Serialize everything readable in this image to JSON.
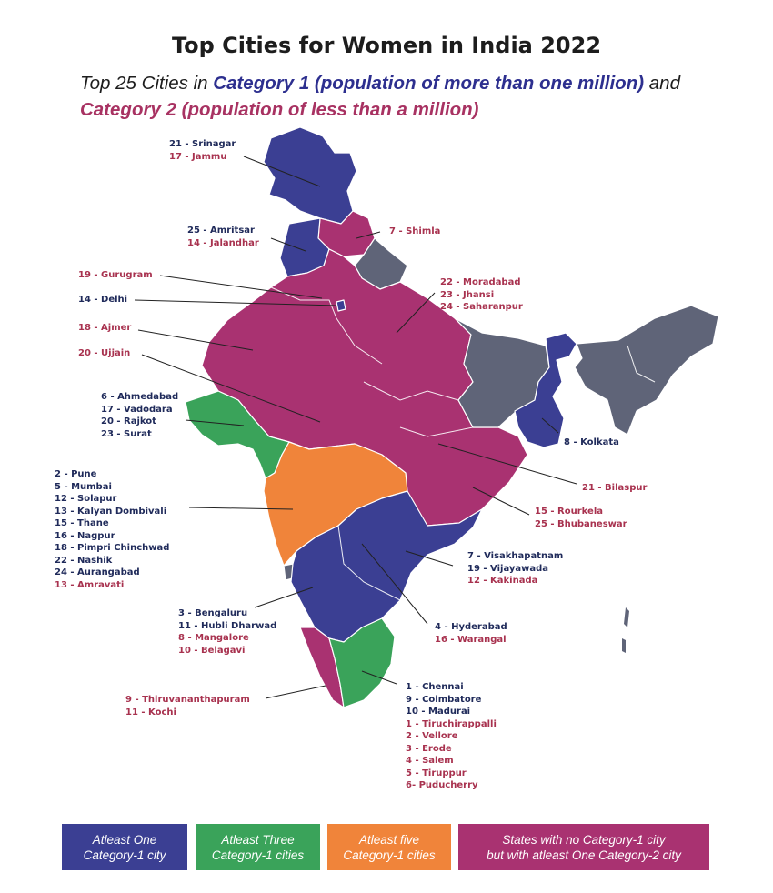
{
  "title": "Top Cities for Women in India 2022",
  "subtitle": {
    "prefix": "Top 25 Cities in",
    "category1": "Category 1 (population of more than one million)",
    "connector": "and",
    "category2": "Category 2 (population of less than a million)"
  },
  "colors": {
    "category1_states": "#3b3f93",
    "three_cities": "#3aa35a",
    "five_cities": "#f0843a",
    "category2_only": "#a93271",
    "no_city": "#5f6478",
    "label_blue": "#1f2a5a",
    "label_red": "#a8324f"
  },
  "callouts": {
    "srinagar": [
      "21 - Srinagar",
      "17 - Jammu"
    ],
    "amritsar": [
      "25 - Amritsar",
      "14 - Jalandhar"
    ],
    "shimla": [
      "7 - Shimla"
    ],
    "gurugram": [
      "19 - Gurugram"
    ],
    "delhi": [
      "14 - Delhi"
    ],
    "moradabad": [
      "22 - Moradabad",
      "23 - Jhansi",
      "24 - Saharanpur"
    ],
    "ajmer": [
      "18 - Ajmer"
    ],
    "ujjain": [
      "20 - Ujjain"
    ],
    "gujarat": [
      "6 - Ahmedabad",
      "17 - Vadodara",
      "20 - Rajkot",
      "23 - Surat"
    ],
    "kolkata": [
      "8 - Kolkata"
    ],
    "maharashtra": [
      "2 - Pune",
      "5 - Mumbai",
      "12 - Solapur",
      "13 - Kalyan Dombivali",
      "15 - Thane",
      "16 - Nagpur",
      "18 - Pimpri Chinchwad",
      "22 - Nashik",
      "24 - Aurangabad",
      "13 - Amravati"
    ],
    "bilaspur": [
      "21 - Bilaspur"
    ],
    "odisha": [
      "15 - Rourkela",
      "25 - Bhubaneswar"
    ],
    "andhra": [
      "7 - Visakhapatnam",
      "19 - Vijayawada",
      "12 - Kakinada"
    ],
    "karnataka": [
      "3 - Bengaluru",
      "11 - Hubli Dharwad",
      "8 - Mangalore",
      "10 - Belagavi"
    ],
    "hyderabad": [
      "4 - Hyderabad",
      "16 - Warangal"
    ],
    "kerala": [
      "9 - Thiruvananthapuram",
      "11 - Kochi"
    ],
    "tamilnadu": [
      "1 - Chennai",
      "9 - Coimbatore",
      "10 - Madurai",
      "1 - Tiruchirappalli",
      "2 - Vellore",
      "3 - Erode",
      "4 - Salem",
      "5 - Tiruppur",
      "6- Puducherry"
    ]
  },
  "legend": {
    "blue": [
      "Atleast One",
      "Category-1 city"
    ],
    "green": [
      "Atleast Three",
      "Category-1 cities"
    ],
    "orange": [
      "Atleast five",
      "Category-1 cities"
    ],
    "magenta": [
      "States with no Category-1 city",
      "but with atleast One Category-2 city"
    ]
  }
}
